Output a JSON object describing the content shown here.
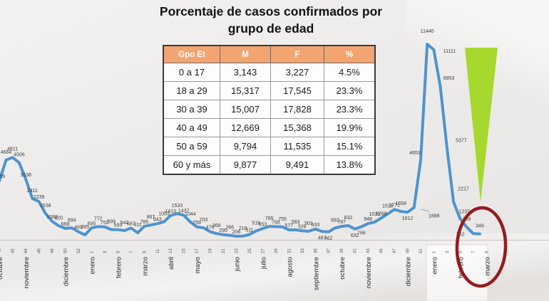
{
  "slide": {
    "title_line1": "Porcentaje de casos confirmados por",
    "title_line2": "grupo de edad"
  },
  "table": {
    "columns": [
      "Gpo Et",
      "M",
      "F",
      "%"
    ],
    "rows": [
      [
        "0 a 17",
        "3,143",
        "3,227",
        "4.5%"
      ],
      [
        "18 a 29",
        "15,317",
        "17,545",
        "23.3%"
      ],
      [
        "30 a 39",
        "15,007",
        "17,828",
        "23.3%"
      ],
      [
        "40 a 49",
        "12,669",
        "15,368",
        "19.9%"
      ],
      [
        "50 a 59",
        "9,794",
        "11,535",
        "15.1%"
      ],
      [
        "60 y más",
        "9,877",
        "9,491",
        "13.8%"
      ]
    ]
  },
  "colors": {
    "line-blue": "#4e93cf",
    "table-header-bg": "#f2a471",
    "arrow-green": "#a6d82e",
    "circle-red": "#931c1e"
  },
  "chart_data": {
    "type": "line",
    "series_note": "casos confirmados por semana",
    "values": [
      2875,
      3459,
      4664,
      4811,
      4506,
      3538,
      2411,
      2239,
      1538,
      1083,
      820,
      668,
      694,
      469,
      285,
      695,
      772,
      752,
      599,
      593,
      542,
      687,
      411,
      785,
      867,
      943,
      1053,
      1413,
      1533,
      1437,
      1044,
      759,
      703,
      476,
      368,
      295,
      266,
      206,
      218,
      311,
      516,
      653,
      785,
      768,
      755,
      577,
      583,
      526,
      501,
      633,
      487,
      462,
      692,
      787,
      832,
      632,
      766,
      948,
      1033,
      1268,
      1516,
      1771,
      1658,
      1612,
      1886,
      4653,
      11440,
      11111,
      8953,
      5377,
      2217,
      1237,
      739,
      362,
      346
    ],
    "x_ticks": [
      {
        "w": "40",
        "m": "octubre"
      },
      {
        "w": "42"
      },
      {
        "w": "44",
        "m": "noviembre"
      },
      {
        "w": "46"
      },
      {
        "w": "48"
      },
      {
        "w": "50",
        "m": "diciembre"
      },
      {
        "w": "52"
      },
      {
        "w": "1",
        "m": "enero"
      },
      {
        "w": "3"
      },
      {
        "w": "5",
        "m": "febrero"
      },
      {
        "w": "7"
      },
      {
        "w": "9",
        "m": "marzo"
      },
      {
        "w": "11"
      },
      {
        "w": "13",
        "m": "abril"
      },
      {
        "w": "15"
      },
      {
        "w": "17",
        "m": "mayo"
      },
      {
        "w": "19"
      },
      {
        "w": "21"
      },
      {
        "w": "23",
        "m": "junio"
      },
      {
        "w": "25"
      },
      {
        "w": "27",
        "m": "julio"
      },
      {
        "w": "29"
      },
      {
        "w": "31",
        "m": "agosto"
      },
      {
        "w": "33"
      },
      {
        "w": "35",
        "m": "septiembre"
      },
      {
        "w": "37"
      },
      {
        "w": "39",
        "m": "octubre"
      },
      {
        "w": "41"
      },
      {
        "w": "43",
        "m": "noviembre"
      },
      {
        "w": "45"
      },
      {
        "w": "47"
      },
      {
        "w": "49",
        "m": "diciembre"
      },
      {
        "w": "51"
      },
      {
        "w": "1",
        "m": "enero"
      },
      {
        "w": "3"
      },
      {
        "w": "5",
        "m": "febrero"
      },
      {
        "w": "7"
      },
      {
        "w": "9",
        "m": "marzo"
      }
    ],
    "below_label_indices": [
      50,
      51,
      55,
      56,
      63
    ],
    "label_overrides": {
      "3": [
        0,
        -10
      ],
      "64": [
        28,
        14
      ],
      "65": [
        -8,
        -8
      ],
      "66": [
        0,
        -16
      ],
      "67": [
        22,
        4
      ],
      "68": [
        12,
        -10
      ],
      "69": [
        20,
        -8
      ],
      "70": [
        14,
        -16
      ],
      "71": [
        6,
        -8
      ],
      "73": [
        -18,
        3
      ]
    },
    "layout": {
      "x0": -10,
      "x_step": 9.23,
      "baseline_y": 337,
      "y_scale": 0.02404,
      "ylim": [
        0,
        11440
      ],
      "grid": false,
      "legend": false
    }
  }
}
